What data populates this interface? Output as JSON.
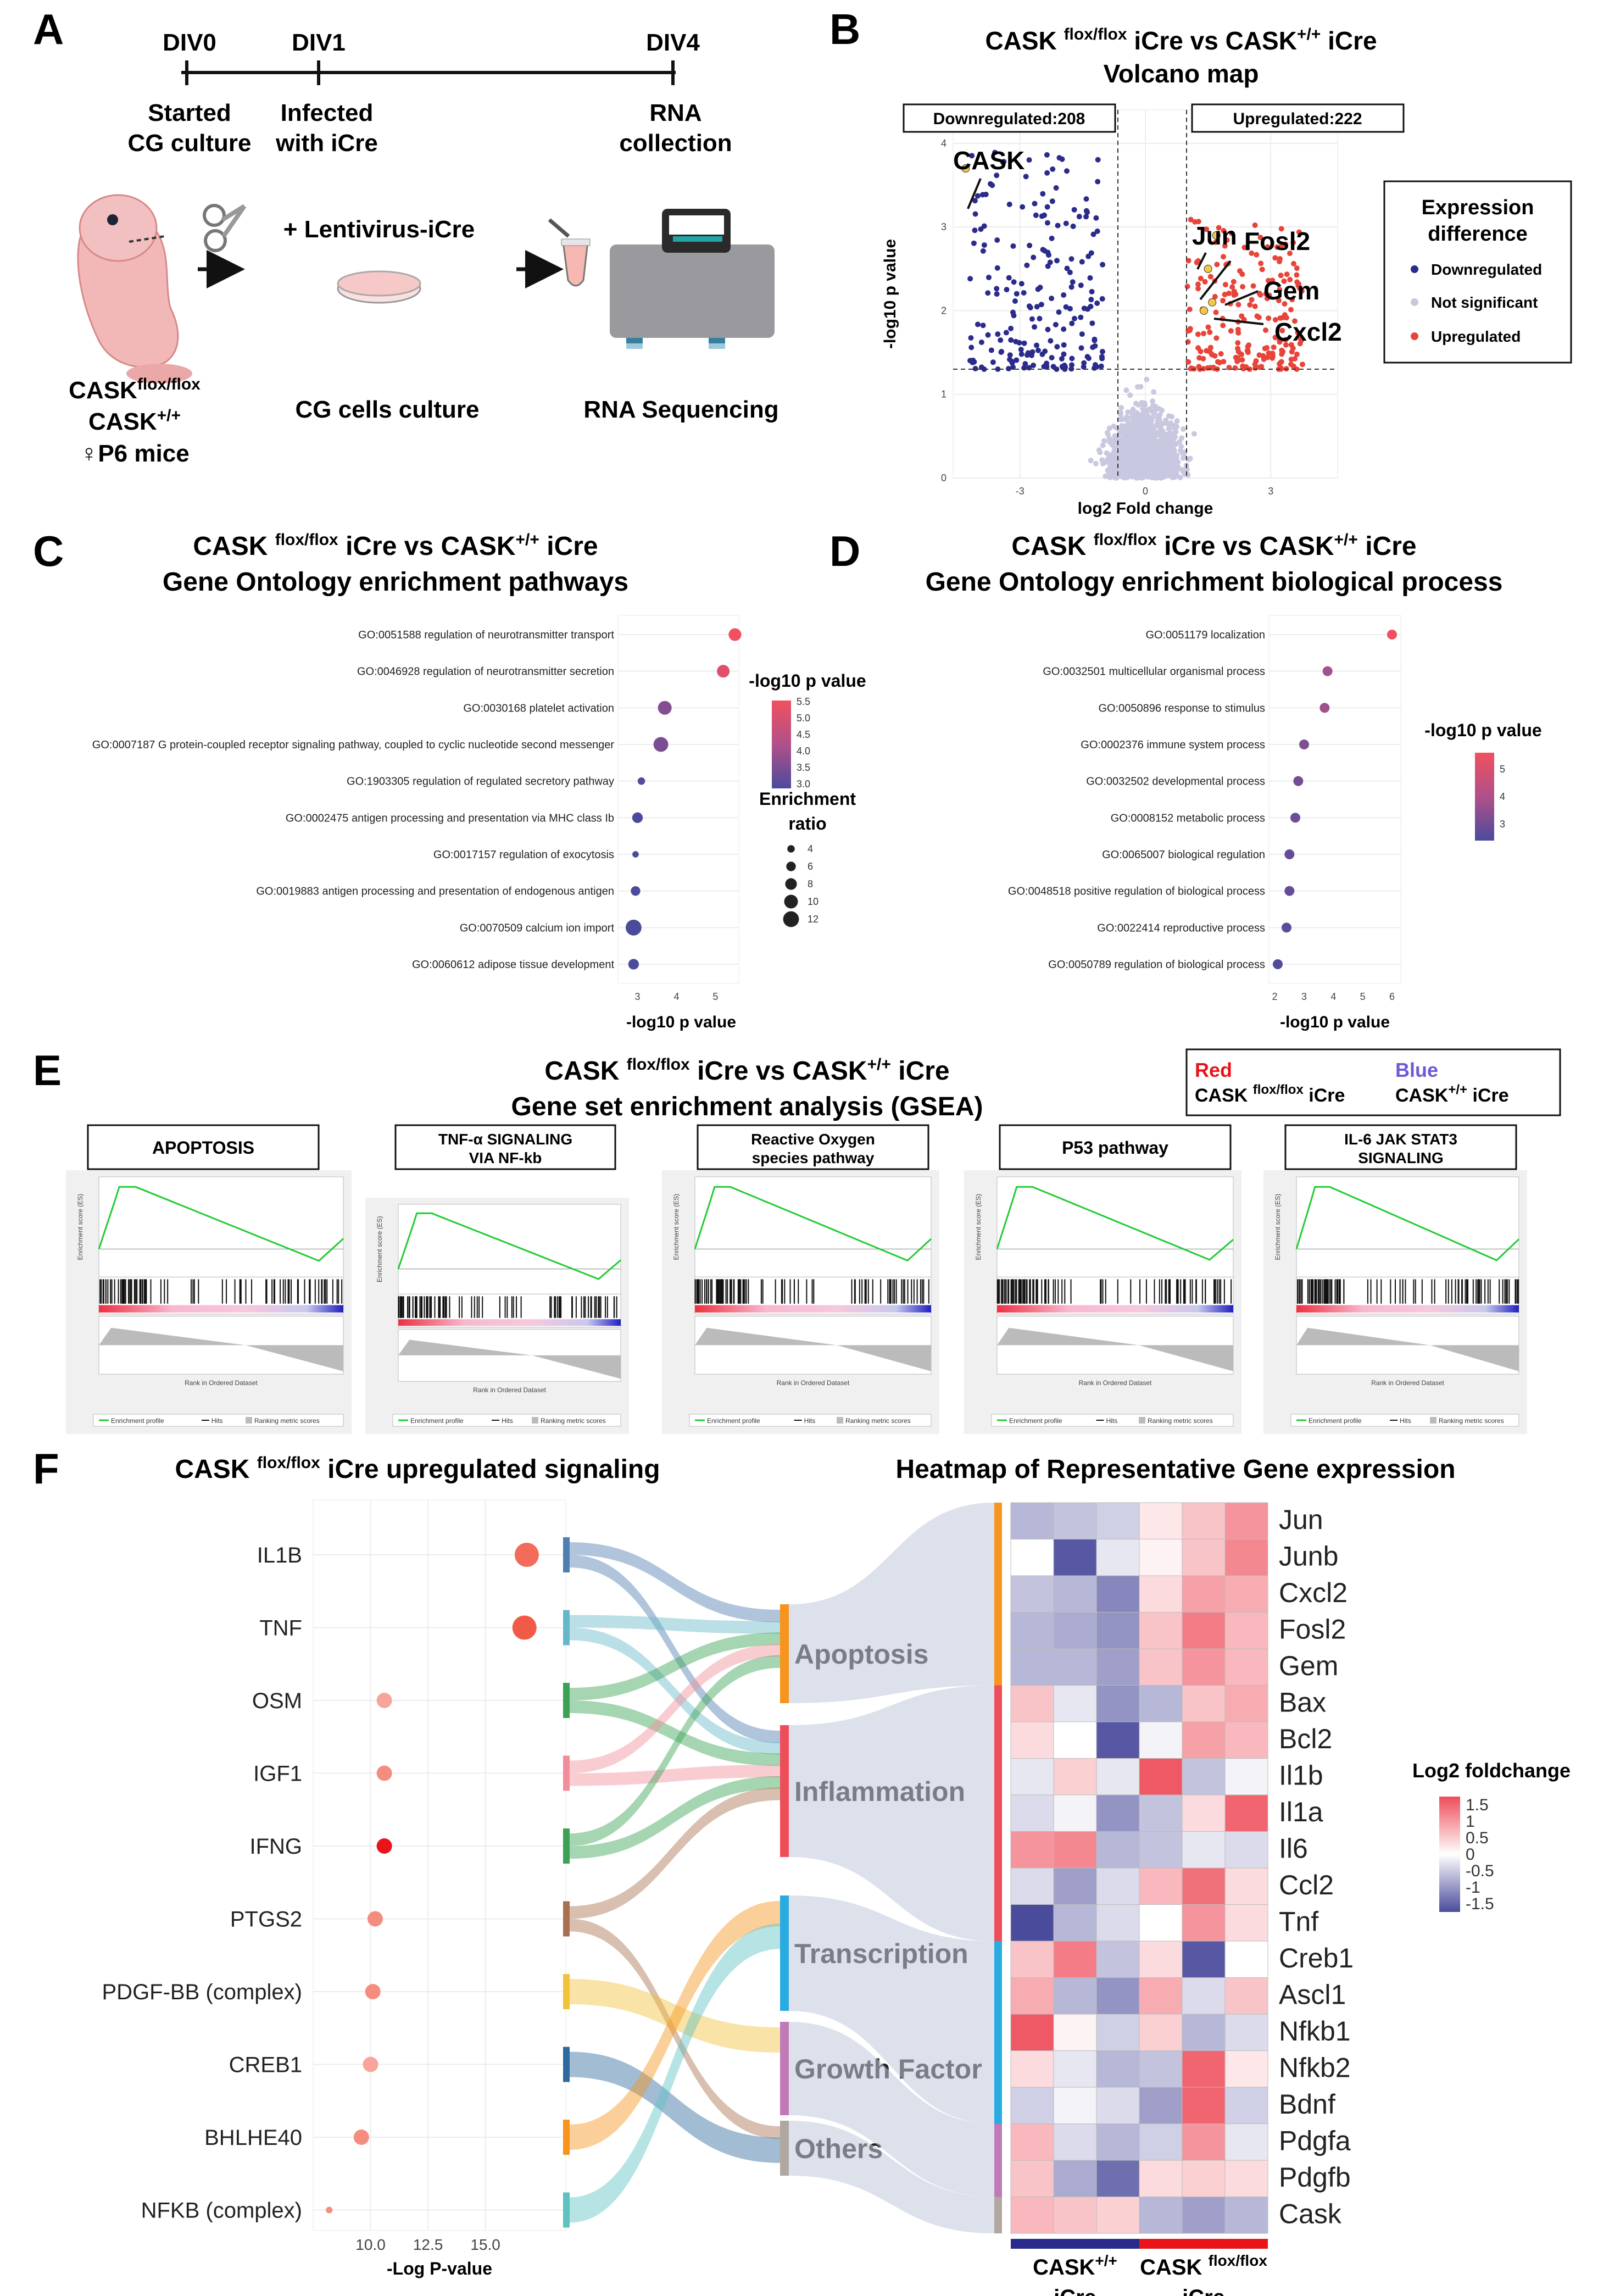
{
  "panelA": {
    "letter": "A",
    "timeline": [
      {
        "day": "DIV0",
        "event": [
          "Started",
          "CG culture"
        ]
      },
      {
        "day": "DIV1",
        "event": [
          "Infected",
          "with iCre"
        ]
      },
      {
        "day": "DIV4",
        "event": [
          "RNA",
          "collection"
        ]
      }
    ],
    "mouse_labels": {
      "line1": "CASK",
      "line1_sup": "flox/flox",
      "line2": "CASK",
      "line2_sup": "+/+",
      "line3": "♀P6 mice"
    },
    "virus_label": "+ Lentivirus-iCre",
    "culture_label": "CG cells culture",
    "sequencing_label": "RNA Sequencing"
  },
  "panelB": {
    "letter": "B",
    "title_l1_a": "CASK ",
    "title_sup_a": "flox/flox",
    "title_l1_b": " iCre vs CASK",
    "title_sup_b": "+/+",
    "title_l1_c": " iCre",
    "title_l2": "Volcano map",
    "down_box": "Downregulated:208",
    "up_box": "Upregulated:222",
    "xlabel": "log2 Fold change",
    "ylabel": "-log10 p value",
    "x_ticks": [
      "-3",
      "0",
      "3"
    ],
    "y_ticks": [
      "0",
      "1",
      "2",
      "3",
      "4"
    ],
    "legend_title": [
      "Expression",
      "difference"
    ],
    "legend": [
      {
        "label": "Downregulated",
        "color": "#2b2b8c"
      },
      {
        "label": "Not significant",
        "color": "#c8c8d8"
      },
      {
        "label": "Upregulated",
        "color": "#e8443a"
      }
    ],
    "gene_labels": [
      "CASK",
      "Jun",
      "Fosl2",
      "Gem",
      "Cxcl2"
    ]
  },
  "panelC": {
    "letter": "C",
    "title_a": "CASK ",
    "title_sup_a": "flox/flox",
    "title_b": " iCre vs CASK",
    "title_sup_b": "+/+",
    "title_c": " iCre",
    "title_l2": "Gene Ontology enrichment pathways",
    "color_legend_title": "-log10 p value",
    "color_ticks": [
      "5.5",
      "5.0",
      "4.5",
      "4.0",
      "3.5",
      "3.0"
    ],
    "size_legend_title": [
      "Enrichment",
      "ratio"
    ],
    "size_ticks": [
      "4",
      "6",
      "8",
      "10",
      "12"
    ],
    "x_ticks": [
      "3",
      "4",
      "5"
    ],
    "xlabel": "-log10 p value"
  },
  "panelD": {
    "letter": "D",
    "title_a": "CASK ",
    "title_sup_a": "flox/flox",
    "title_b": " iCre vs CASK",
    "title_sup_b": "+/+",
    "title_c": " iCre",
    "title_l2": "Gene Ontology enrichment biological process",
    "color_legend_title": "-log10 p value",
    "color_ticks": [
      "5",
      "4",
      "3"
    ],
    "x_ticks": [
      "2",
      "3",
      "4",
      "5",
      "6"
    ],
    "xlabel": "-log10 p value"
  },
  "panelE": {
    "letter": "E",
    "title_a": "CASK ",
    "title_sup_a": "flox/flox",
    "title_b": " iCre vs CASK",
    "title_sup_b": "+/+",
    "title_c": " iCre",
    "title_l2": "Gene set enrichment analysis (GSEA)",
    "legend_red": "Red",
    "legend_blue": "Blue",
    "legend_red_a": "CASK ",
    "legend_red_sup": "flox/flox",
    "legend_red_b": " iCre",
    "legend_blue_a": "CASK",
    "legend_blue_sup": "+/+",
    "legend_blue_b": " iCre",
    "gsea_ylabel": "Enrichment score (ES)",
    "gsea_xlabel": "Rank in Ordered Dataset",
    "gsea_legend": [
      "Enrichment profile",
      "Hits",
      "Ranking metric scores"
    ]
  },
  "panelF": {
    "letter": "F",
    "left_title_a": "CASK ",
    "left_title_sup": "flox/flox",
    "left_title_b": " iCre upregulated signaling",
    "right_title": "Heatmap of Representative Gene expression",
    "xlabel": "-Log P-value",
    "x_ticks": [
      "10.0",
      "12.5",
      "15.0"
    ],
    "categories": [
      "Apoptosis",
      "Inflammation",
      "Transcription",
      "Growth Factor",
      "Others"
    ],
    "heat_legend_title": "Log2 foldchange",
    "heat_legend_ticks": [
      "1.5",
      "1",
      "0.5",
      "0",
      "-0.5",
      "-1",
      "-1.5"
    ],
    "group_labels": [
      {
        "a": "CASK",
        "sup": "+/+",
        "b": "iCre"
      },
      {
        "a": "CASK ",
        "sup": "flox/flox",
        "b": "iCre"
      }
    ]
  },
  "chart_data": [
    {
      "type": "timeline",
      "id": "A",
      "x": [
        "DIV0",
        "DIV1",
        "DIV4"
      ]
    },
    {
      "type": "scatter",
      "id": "B",
      "title": "CASK flox/flox iCre vs CASK+/+ iCre Volcano map",
      "xlabel": "log2 Fold change",
      "ylabel": "-log10 p value",
      "xlim": [
        -4.6,
        4.6
      ],
      "ylim": [
        0,
        4.4
      ],
      "thresholds": {
        "log2fc": [
          -1,
          1
        ],
        "neglog10p": 1.3
      },
      "counts": {
        "Downregulated": 208,
        "Upregulated": 222
      },
      "labeled_genes": [
        {
          "gene": "CASK",
          "log2fc": -4.3,
          "neglog10p": 3.7
        },
        {
          "gene": "Jun",
          "log2fc": 1.7,
          "neglog10p": 2.9
        },
        {
          "gene": "Fosl2",
          "log2fc": 1.5,
          "neglog10p": 2.5
        },
        {
          "gene": "Gem",
          "log2fc": 1.6,
          "neglog10p": 2.1
        },
        {
          "gene": "Cxcl2",
          "log2fc": 1.4,
          "neglog10p": 2.0
        }
      ]
    },
    {
      "type": "scatter",
      "id": "C",
      "title": "Gene Ontology enrichment pathways",
      "xlabel": "-log10 p value",
      "xlim": [
        2.5,
        5.6
      ],
      "categories": [
        "GO:0051588 regulation of neurotransmitter transport",
        "GO:0046928 regulation of neurotransmitter secretion",
        "GO:0030168 platelet activation",
        "GO:0007187 G protein-coupled receptor signaling pathway, coupled to cyclic nucleotide second messenger",
        "GO:1903305 regulation of regulated secretory pathway",
        "GO:0002475 antigen processing and presentation via MHC class Ib",
        "GO:0017157 regulation of exocytosis",
        "GO:0019883 antigen processing and presentation of endogenous antigen",
        "GO:0070509 calcium ion import",
        "GO:0060612 adipose tissue development"
      ],
      "x": [
        5.5,
        5.2,
        3.7,
        3.6,
        3.1,
        3.0,
        2.95,
        2.95,
        2.9,
        2.9
      ],
      "enrichment_ratio": [
        9,
        9,
        10,
        11,
        4,
        7,
        3,
        6,
        12,
        7
      ]
    },
    {
      "type": "scatter",
      "id": "D",
      "title": "Gene Ontology enrichment biological process",
      "xlabel": "-log10 p value",
      "xlim": [
        1.8,
        6.3
      ],
      "categories": [
        "GO:0051179 localization",
        "GO:0032501 multicellular organismal process",
        "GO:0050896 response to stimulus",
        "GO:0002376 immune system process",
        "GO:0032502 developmental process",
        "GO:0008152 metabolic process",
        "GO:0065007 biological regulation",
        "GO:0048518 positive regulation of biological process",
        "GO:0022414 reproductive process",
        "GO:0050789 regulation of biological process"
      ],
      "x": [
        6.0,
        3.8,
        3.7,
        3.0,
        2.8,
        2.7,
        2.5,
        2.5,
        2.4,
        2.1
      ]
    },
    {
      "type": "line",
      "id": "E",
      "title": "Gene set enrichment analysis (GSEA)",
      "series": [
        {
          "name": "APOPTOSIS",
          "peak_es": 0.42
        },
        {
          "name": "TNF-α SIGNALING VIA NF-kb",
          "peak_es": 0.44
        },
        {
          "name": "Reactive Oxygen species pathway",
          "peak_es": 0.43
        },
        {
          "name": "P53 pathway",
          "peak_es": 0.46
        },
        {
          "name": "IL-6 JAK STAT3 SIGNALING",
          "peak_es": 0.44
        }
      ]
    },
    {
      "type": "scatter",
      "id": "F-left",
      "title": "CASK flox/flox iCre upregulated signaling",
      "xlabel": "-Log P-value",
      "xlim": [
        7.5,
        18.5
      ],
      "categories": [
        "IL1B",
        "TNF",
        "OSM",
        "IGF1",
        "IFNG",
        "PTGS2",
        "PDGF-BB (complex)",
        "CREB1",
        "BHLHE40",
        "NFKB (complex)"
      ],
      "x": [
        16.8,
        16.7,
        10.6,
        10.6,
        10.6,
        10.2,
        10.1,
        10.0,
        9.6,
        8.2
      ],
      "dot_colors": [
        "#f26b5b",
        "#f25a48",
        "#f7a59b",
        "#f48d80",
        "#e8141a",
        "#f48d80",
        "#f48d80",
        "#f7a59b",
        "#f48d80",
        "#f48d80"
      ],
      "flows": [
        {
          "from": "IL1B",
          "to": [
            "Apoptosis",
            "Inflammation"
          ]
        },
        {
          "from": "TNF",
          "to": [
            "Apoptosis",
            "Inflammation"
          ]
        },
        {
          "from": "OSM",
          "to": [
            "Apoptosis",
            "Inflammation"
          ]
        },
        {
          "from": "IGF1",
          "to": [
            "Apoptosis",
            "Inflammation"
          ]
        },
        {
          "from": "IFNG",
          "to": [
            "Apoptosis",
            "Inflammation"
          ]
        },
        {
          "from": "PTGS2",
          "to": [
            "Inflammation",
            "Others"
          ]
        },
        {
          "from": "PDGF-BB (complex)",
          "to": [
            "Growth Factor"
          ]
        },
        {
          "from": "CREB1",
          "to": [
            "Others"
          ]
        },
        {
          "from": "BHLHE40",
          "to": [
            "Transcription"
          ]
        },
        {
          "from": "NFKB (complex)",
          "to": [
            "Transcription"
          ]
        }
      ],
      "flow_colors": [
        "#4f7fb0",
        "#66b8c8",
        "#3aa155",
        "#f28e9c",
        "#3aa155",
        "#a87050",
        "#f2c23a",
        "#2e6a9e",
        "#f7941d",
        "#5dc2c0"
      ]
    },
    {
      "type": "heatmap",
      "id": "F-right",
      "title": "Heatmap of Representative Gene expression",
      "rows": [
        "Jun",
        "Junb",
        "Cxcl2",
        "Fosl2",
        "Gem",
        "Bax",
        "Bcl2",
        "Il1b",
        "Il1a",
        "Il6",
        "Ccl2",
        "Tnf",
        "Creb1",
        "Ascl1",
        "Nfkb1",
        "Nfkb2",
        "Bdnf",
        "Pdgfa",
        "Pdgfb",
        "Cask"
      ],
      "columns": [
        "CASK+/+ iCre 1",
        "CASK+/+ iCre 2",
        "CASK+/+ iCre 3",
        "CASK flox/flox iCre 1",
        "CASK flox/flox iCre 2",
        "CASK flox/flox iCre 3"
      ],
      "row_categories": [
        "Apoptosis",
        "Apoptosis",
        "Apoptosis",
        "Apoptosis",
        "Apoptosis",
        "Inflammation",
        "Inflammation",
        "Inflammation",
        "Inflammation",
        "Inflammation",
        "Inflammation",
        "Inflammation",
        "Transcription",
        "Transcription",
        "Transcription",
        "Transcription",
        "Transcription",
        "Growth Factor",
        "Growth Factor",
        "Others"
      ],
      "category_colors": {
        "Apoptosis": "#f7941d",
        "Inflammation": "#ee4d5a",
        "Transcription": "#29abe2",
        "Growth Factor": "#c07ab8",
        "Others": "#b0a8a0"
      },
      "values": [
        [
          -0.6,
          -0.5,
          -0.4,
          0.2,
          0.5,
          0.9
        ],
        [
          0.0,
          -1.4,
          -0.2,
          0.1,
          0.5,
          1.0
        ],
        [
          -0.5,
          -0.6,
          -1.0,
          0.3,
          0.8,
          0.7
        ],
        [
          -0.6,
          -0.7,
          -0.9,
          0.5,
          1.1,
          0.6
        ],
        [
          -0.6,
          -0.6,
          -0.8,
          0.5,
          0.9,
          0.6
        ],
        [
          0.5,
          -0.2,
          -0.9,
          -0.6,
          0.5,
          0.7
        ],
        [
          0.3,
          0.0,
          -1.4,
          -0.1,
          0.8,
          0.6
        ],
        [
          -0.2,
          0.4,
          -0.2,
          1.4,
          -0.5,
          -0.1
        ],
        [
          -0.3,
          -0.1,
          -0.9,
          -0.5,
          0.3,
          1.3
        ],
        [
          0.9,
          1.0,
          -0.6,
          -0.5,
          -0.2,
          -0.3
        ],
        [
          -0.3,
          -0.8,
          -0.3,
          0.6,
          1.2,
          0.3
        ],
        [
          -1.6,
          -0.6,
          -0.3,
          0.0,
          0.9,
          0.3
        ],
        [
          0.5,
          1.1,
          -0.5,
          0.3,
          -1.4,
          0.0
        ],
        [
          0.7,
          -0.6,
          -0.9,
          0.7,
          -0.3,
          0.5
        ],
        [
          1.4,
          0.1,
          -0.4,
          0.4,
          -0.6,
          -0.3
        ],
        [
          0.3,
          -0.2,
          -0.6,
          -0.5,
          1.3,
          0.2
        ],
        [
          -0.4,
          -0.1,
          -0.3,
          -0.8,
          1.3,
          -0.4
        ],
        [
          0.6,
          -0.3,
          -0.6,
          -0.4,
          0.9,
          -0.2
        ],
        [
          0.5,
          -0.7,
          -1.2,
          0.3,
          0.4,
          0.3
        ],
        [
          0.6,
          0.5,
          0.4,
          -0.6,
          -0.8,
          -0.6
        ]
      ],
      "color_scale": {
        "min": -1.5,
        "max": 1.5,
        "low": "#4b4b9c",
        "mid": "#ffffff",
        "high": "#ee4d5a"
      }
    }
  ]
}
